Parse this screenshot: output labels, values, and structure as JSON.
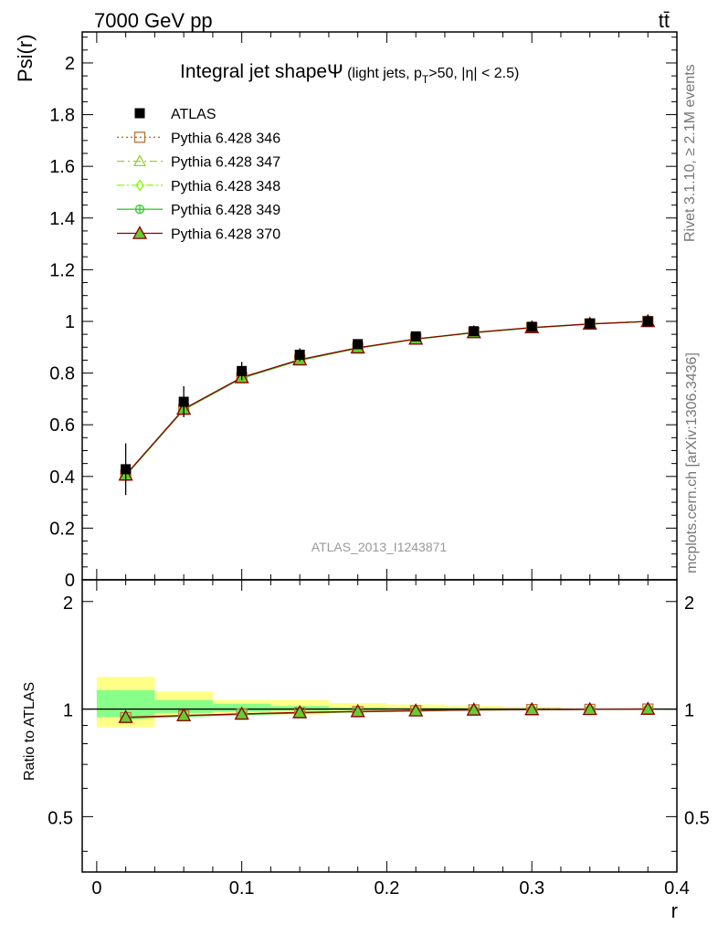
{
  "header": {
    "left": "7000 GeV pp",
    "right": "tt̄"
  },
  "side": {
    "rivet": "Rivet 3.1.10, ≥ 2.1M events",
    "mcplots": "mcplots.cern.ch [arXiv:1306.3436]"
  },
  "chart_data": {
    "type": "line",
    "title_main": "Integral jet shapeΨ",
    "title_sub_a": " (light jets, p",
    "title_sub_b": "T",
    "title_sub_c": ">50, |η| < 2.5)",
    "analysis_id": "ATLAS_2013_I1243871",
    "xlabel": "r",
    "ylabel": "Psi(r)",
    "ratio_ylabel": "Ratio to ATLAS",
    "xlim": [
      -0.01,
      0.4
    ],
    "ylim": [
      0,
      2.12
    ],
    "ratio_ylim": [
      0.35,
      2.3
    ],
    "xticks": [
      0,
      0.1,
      0.2,
      0.3,
      0.4
    ],
    "xtick_labels": [
      "0",
      "0.1",
      "0.2",
      "0.3",
      "0.4"
    ],
    "yticks": [
      0,
      0.2,
      0.4,
      0.6,
      0.8,
      1,
      1.2,
      1.4,
      1.6,
      1.8,
      2
    ],
    "ytick_labels": [
      "0",
      "0.2",
      "0.4",
      "0.6",
      "0.8",
      "1",
      "1.2",
      "1.4",
      "1.6",
      "1.8",
      "2"
    ],
    "ratio_yticks": [
      0.5,
      1,
      2
    ],
    "ratio_ytick_labels": [
      "0.5",
      "1",
      "2"
    ],
    "x": [
      0.02,
      0.06,
      0.1,
      0.14,
      0.18,
      0.22,
      0.26,
      0.3,
      0.34,
      0.38
    ],
    "data": {
      "name": "ATLAS",
      "values": [
        0.428,
        0.689,
        0.808,
        0.871,
        0.912,
        0.942,
        0.962,
        0.979,
        0.992,
        1.0
      ],
      "err_stat": [
        0.04,
        0.03,
        0.015,
        0.01,
        0.006,
        0.004,
        0.003,
        0.002,
        0.001,
        0.0
      ],
      "err_tot": [
        0.1,
        0.06,
        0.035,
        0.025,
        0.015,
        0.01,
        0.008,
        0.006,
        0.003,
        0.0
      ],
      "band_edges": [
        0.0,
        0.04,
        0.08,
        0.12,
        0.16,
        0.2,
        0.24,
        0.28,
        0.32,
        0.36,
        0.4
      ],
      "ratio_tot_lo": [
        0.89,
        0.955,
        0.965,
        0.965,
        0.985,
        0.99,
        0.99,
        0.993,
        0.997,
        1.0
      ],
      "ratio_tot_hi": [
        1.23,
        1.12,
        1.06,
        1.06,
        1.04,
        1.03,
        1.02,
        1.015,
        1.0,
        1.0
      ],
      "ratio_stat_lo": [
        0.95,
        0.975,
        0.985,
        0.99,
        0.995,
        0.996,
        0.997,
        0.998,
        1.0,
        1.0
      ],
      "ratio_stat_hi": [
        1.13,
        1.06,
        1.035,
        1.02,
        1.01,
        1.007,
        1.006,
        1.005,
        1.0,
        1.0
      ]
    },
    "series": [
      {
        "name": "Pythia 6.428 346",
        "color": "#b87333",
        "dash": "2,3",
        "marker": "square",
        "values": [
          0.405,
          0.66,
          0.782,
          0.851,
          0.897,
          0.932,
          0.957,
          0.976,
          0.99,
          1.0
        ]
      },
      {
        "name": "Pythia 6.428 347",
        "color": "#9acd32",
        "dash": "8,4,2,4",
        "marker": "triangle",
        "values": [
          0.404,
          0.659,
          0.781,
          0.85,
          0.896,
          0.931,
          0.956,
          0.975,
          0.99,
          1.0
        ]
      },
      {
        "name": "Pythia 6.428 348",
        "color": "#7fff00",
        "dash": "8,3,2,3",
        "marker": "diamond",
        "values": [
          0.405,
          0.66,
          0.782,
          0.851,
          0.897,
          0.932,
          0.957,
          0.976,
          0.99,
          1.0
        ]
      },
      {
        "name": "Pythia 6.428 349",
        "color": "#32cd32",
        "dash": "",
        "marker": "circleplus",
        "values": [
          0.403,
          0.658,
          0.78,
          0.849,
          0.896,
          0.931,
          0.956,
          0.975,
          0.99,
          1.0
        ]
      },
      {
        "name": "Pythia 6.428 370",
        "color": "#8b0000",
        "dash": "",
        "marker": "triangle-red",
        "values": [
          0.406,
          0.661,
          0.783,
          0.852,
          0.898,
          0.932,
          0.957,
          0.976,
          0.99,
          1.0
        ]
      }
    ]
  }
}
